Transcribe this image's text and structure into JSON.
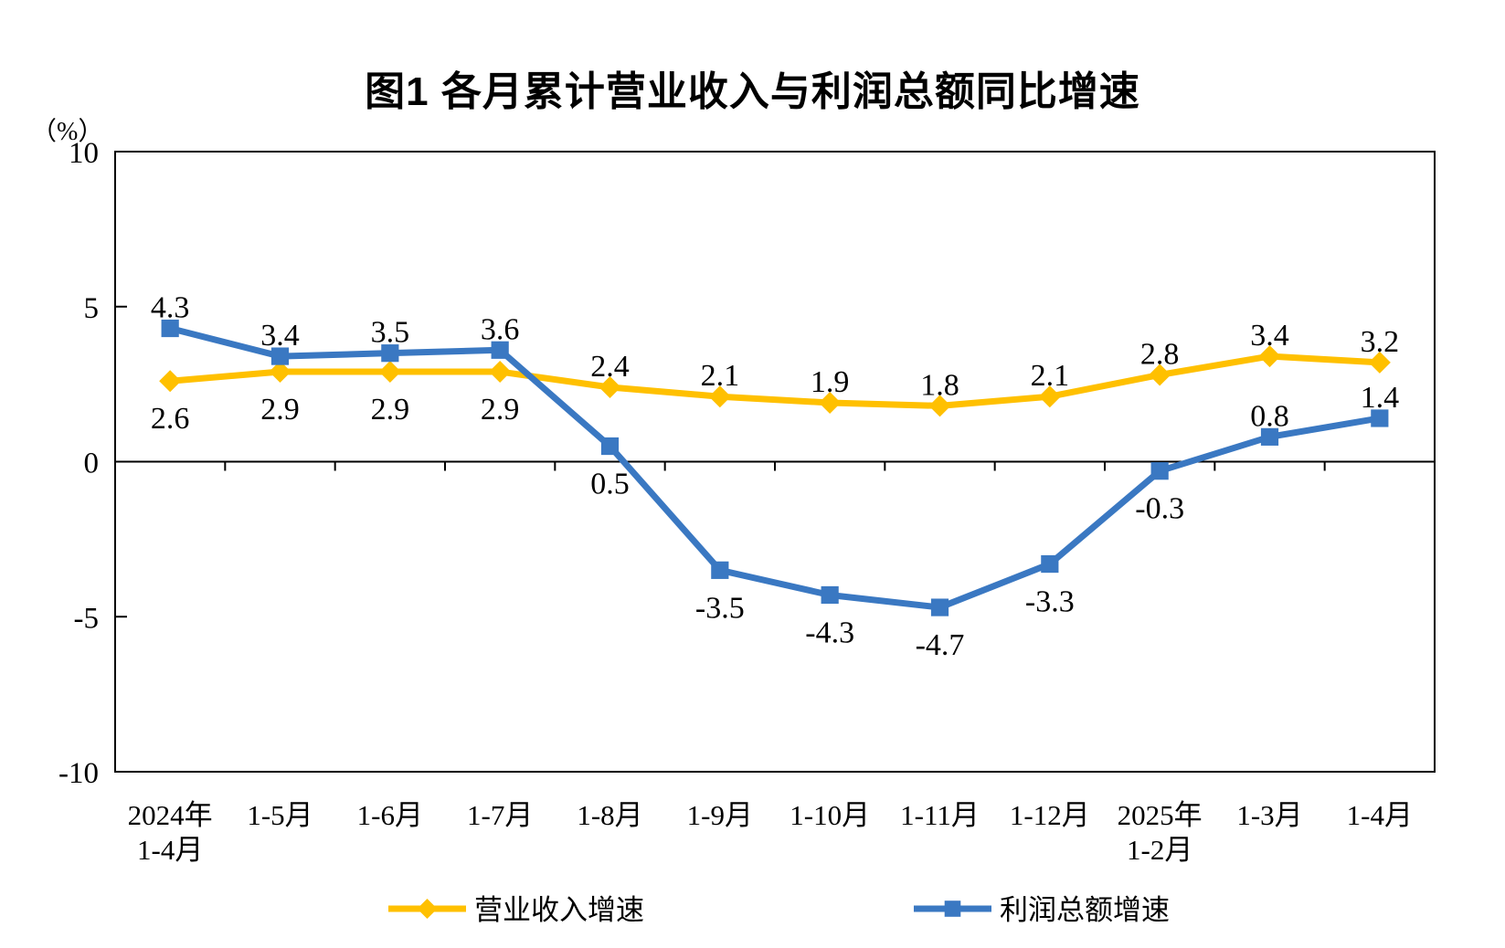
{
  "chart_data": {
    "type": "line",
    "title": "图1  各月累计营业收入与利润总额同比增速",
    "y_axis_unit": "（%）",
    "y_axis": {
      "min": -10,
      "max": 10,
      "tick_step": 5,
      "ticks": [
        10,
        5,
        0,
        -5,
        -10
      ]
    },
    "grid": "off",
    "legend_position": "bottom",
    "categories": [
      [
        "2024年",
        "1-4月"
      ],
      [
        "1-5月"
      ],
      [
        "1-6月"
      ],
      [
        "1-7月"
      ],
      [
        "1-8月"
      ],
      [
        "1-9月"
      ],
      [
        "1-10月"
      ],
      [
        "1-11月"
      ],
      [
        "1-12月"
      ],
      [
        "2025年",
        "1-2月"
      ],
      [
        "1-3月"
      ],
      [
        "1-4月"
      ]
    ],
    "series": [
      {
        "name": "营业收入增速",
        "color": "#FFC000",
        "marker": "diamond",
        "values": [
          2.6,
          2.9,
          2.9,
          2.9,
          2.4,
          2.1,
          1.9,
          1.8,
          2.1,
          2.8,
          3.4,
          3.2
        ],
        "label_positions": [
          "below",
          "below",
          "below",
          "below",
          "above",
          "above",
          "above",
          "above",
          "above",
          "above",
          "above",
          "above"
        ]
      },
      {
        "name": "利润总额增速",
        "color": "#3A78C2",
        "marker": "square",
        "values": [
          4.3,
          3.4,
          3.5,
          3.6,
          0.5,
          -3.5,
          -4.3,
          -4.7,
          -3.3,
          -0.3,
          0.8,
          1.4
        ],
        "label_positions": [
          "above",
          "above",
          "above",
          "above",
          "below",
          "below",
          "below",
          "below",
          "below",
          "below",
          "above",
          "above"
        ]
      }
    ]
  }
}
